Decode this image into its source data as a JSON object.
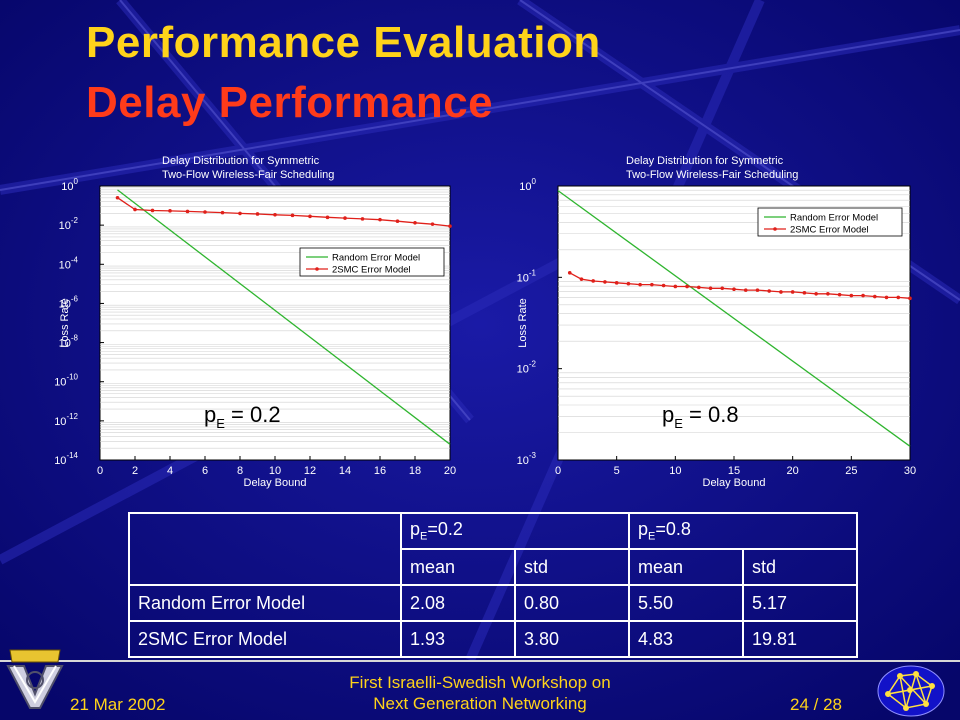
{
  "slide": {
    "title_line1": "Performance Evaluation",
    "title_line2": "Delay Performance",
    "footer_date": "21 Mar 2002",
    "footer_event_line1": "First Israelli-Swedish Workshop on",
    "footer_event_line2": "Next Generation Networking",
    "footer_page": "24 / 28"
  },
  "chart_data": [
    {
      "type": "line",
      "title": "Delay Distribution for Symmetric Two-Flow Wireless-Fair  Scheduling",
      "title_line1": "Delay Distribution for Symmetric",
      "title_line2": "Two-Flow Wireless-Fair  Scheduling",
      "xlabel": "Delay Bound",
      "ylabel": "Loss Rate",
      "xlim": [
        0,
        20
      ],
      "ylim_exp": [
        -14,
        0
      ],
      "yscale": "log",
      "xticks": [
        0,
        2,
        4,
        6,
        8,
        10,
        12,
        14,
        16,
        18,
        20
      ],
      "yticks": [
        {
          "base": "10",
          "exp": "0",
          "v": 0
        },
        {
          "base": "10",
          "exp": "-2",
          "v": -2
        },
        {
          "base": "10",
          "exp": "-4",
          "v": -4
        },
        {
          "base": "10",
          "exp": "-6",
          "v": -6
        },
        {
          "base": "10",
          "exp": "-8",
          "v": -8
        },
        {
          "base": "10",
          "exp": "-10",
          "v": -10
        },
        {
          "base": "10",
          "exp": "-12",
          "v": -12
        },
        {
          "base": "10",
          "exp": "-14",
          "v": -14
        }
      ],
      "annotation_base": "p",
      "annotation_sub": "E",
      "annotation_rest": " = 0.2",
      "legend_position": "upper-right",
      "series": [
        {
          "name": "Random Error Model",
          "color": "#2fb52f",
          "x": [
            1,
            20
          ],
          "log10y": [
            -0.2,
            -13.2
          ]
        },
        {
          "name": "2SMC Error Model",
          "color": "#e0201a",
          "x": [
            1,
            2,
            3,
            4,
            5,
            6,
            7,
            8,
            9,
            10,
            11,
            12,
            13,
            14,
            15,
            16,
            17,
            18,
            19,
            20
          ],
          "log10y": [
            -0.6,
            -1.2,
            -1.25,
            -1.27,
            -1.3,
            -1.33,
            -1.36,
            -1.4,
            -1.43,
            -1.47,
            -1.5,
            -1.55,
            -1.6,
            -1.64,
            -1.68,
            -1.72,
            -1.8,
            -1.88,
            -1.95,
            -2.05
          ]
        }
      ]
    },
    {
      "type": "line",
      "title": "Delay Distribution for Symmetric Two-Flow Wireless-Fair  Scheduling",
      "title_line1": "Delay Distribution for Symmetric",
      "title_line2": "Two-Flow Wireless-Fair  Scheduling",
      "xlabel": "Delay Bound",
      "ylabel": "Loss Rate",
      "xlim": [
        0,
        30
      ],
      "ylim_exp": [
        -3,
        0
      ],
      "yscale": "log",
      "xticks": [
        0,
        5,
        10,
        15,
        20,
        25,
        30
      ],
      "yticks": [
        {
          "base": "10",
          "exp": "0",
          "v": 0
        },
        {
          "base": "10",
          "exp": "-1",
          "v": -1
        },
        {
          "base": "10",
          "exp": "-2",
          "v": -2
        },
        {
          "base": "10",
          "exp": "-3",
          "v": -3
        }
      ],
      "annotation_base": "p",
      "annotation_sub": "E",
      "annotation_rest": " = 0.8",
      "legend_position": "top-right",
      "series": [
        {
          "name": "Random Error Model",
          "color": "#2fb52f",
          "x": [
            0,
            30
          ],
          "log10y": [
            -0.05,
            -2.85
          ]
        },
        {
          "name": "2SMC Error Model",
          "color": "#e0201a",
          "x": [
            1,
            2,
            3,
            4,
            5,
            6,
            7,
            8,
            9,
            10,
            11,
            12,
            13,
            14,
            15,
            16,
            17,
            18,
            19,
            20,
            21,
            22,
            23,
            24,
            25,
            26,
            27,
            28,
            29,
            30
          ],
          "log10y": [
            -0.95,
            -1.02,
            -1.04,
            -1.05,
            -1.06,
            -1.07,
            -1.08,
            -1.08,
            -1.09,
            -1.1,
            -1.1,
            -1.11,
            -1.12,
            -1.12,
            -1.13,
            -1.14,
            -1.14,
            -1.15,
            -1.16,
            -1.16,
            -1.17,
            -1.18,
            -1.18,
            -1.19,
            -1.2,
            -1.2,
            -1.21,
            -1.22,
            -1.22,
            -1.23
          ]
        }
      ]
    }
  ],
  "table": {
    "header1": [
      "",
      "pE=0.2",
      "pE=0.8"
    ],
    "header1_rich": [
      {
        "base": "p",
        "sub": "E",
        "rest": "=0.2"
      },
      {
        "base": "p",
        "sub": "E",
        "rest": "=0.8"
      }
    ],
    "header2": [
      "mean",
      "std",
      "mean",
      "std"
    ],
    "rows": [
      {
        "label": "Random Error Model",
        "values": [
          "2.08",
          "0.80",
          "5.50",
          "5.17"
        ]
      },
      {
        "label": "2SMC Error Model",
        "values": [
          "1.93",
          "3.80",
          "4.83",
          "19.81"
        ]
      }
    ]
  },
  "colors": {
    "background": "#0a0a7a",
    "title_yellow": "#ffd31a",
    "title_red": "#ff3b1a",
    "plot_bg": "#ffffff"
  }
}
